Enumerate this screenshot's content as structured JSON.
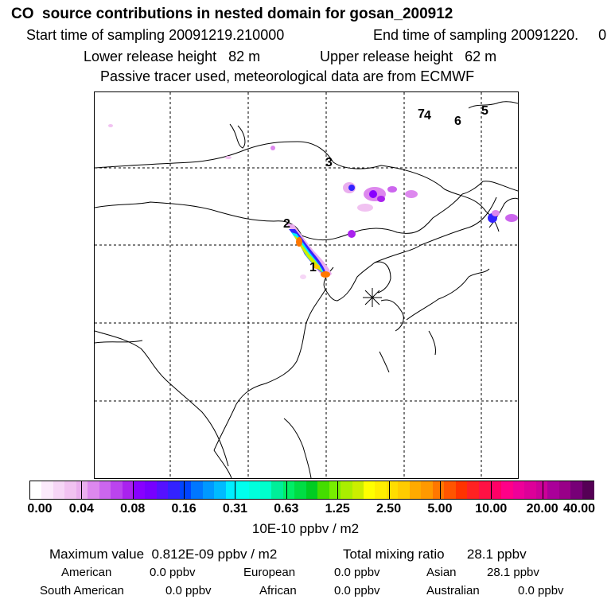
{
  "header": {
    "title": "CO  source contributions in nested domain for gosan_200912",
    "start_label": "Start time of sampling 20091219.210000",
    "end_label": "End time of sampling 20091220.     0",
    "lower_height": "Lower release height   82 m",
    "upper_height": "Upper release height   62 m",
    "tracer_note": "Passive tracer used, meteorological data are from ECMWF"
  },
  "map": {
    "point_labels": [
      "1",
      "2",
      "3",
      "4",
      "5",
      "6",
      "7"
    ],
    "receptor_symbol": "star-marker"
  },
  "colorbar": {
    "ticks": [
      "0.00",
      "0.04",
      "0.08",
      "0.16",
      "0.31",
      "0.63",
      "1.25",
      "2.50",
      "5.00",
      "10.00",
      "20.00",
      "40.00"
    ],
    "unit": "10E-10 ppbv / m2",
    "colors": [
      "#ffffff",
      "#fbeafb",
      "#f6d6f6",
      "#f1c2f1",
      "#eaaeee",
      "#dd88ee",
      "#cc66ee",
      "#bb44ee",
      "#aa22ee",
      "#8800ff",
      "#7700ff",
      "#5511ff",
      "#3322ff",
      "#0044ff",
      "#0077ff",
      "#0099ff",
      "#00bbff",
      "#00eeff",
      "#00ffee",
      "#00ffdd",
      "#00ffcc",
      "#00ee99",
      "#00ee66",
      "#00dd44",
      "#00cc22",
      "#44dd00",
      "#77ee00",
      "#aaee00",
      "#ccee00",
      "#ffff00",
      "#ffee00",
      "#ffdd00",
      "#ffcc00",
      "#ffaa00",
      "#ff9900",
      "#ff7700",
      "#ff5500",
      "#ff3300",
      "#ff2222",
      "#ff1144",
      "#ff0066",
      "#ff0088",
      "#ee0099",
      "#dd0099",
      "#cc0099",
      "#aa0099",
      "#990088",
      "#770077",
      "#550055"
    ]
  },
  "summary": {
    "max_value": "Maximum value  0.812E-09 ppbv / m2",
    "total_mixing": "Total mixing ratio      28.1 ppbv",
    "regions": [
      {
        "name": "American",
        "value": "0.0 ppbv"
      },
      {
        "name": "European",
        "value": "0.0 ppbv"
      },
      {
        "name": "Asian",
        "value": "28.1 ppbv"
      },
      {
        "name": "South American",
        "value": "0.0 ppbv"
      },
      {
        "name": "African",
        "value": "0.0 ppbv"
      },
      {
        "name": "Australian",
        "value": "0.0 ppbv"
      }
    ]
  },
  "chart_data": {
    "type": "heatmap",
    "title": "CO  source contributions in nested domain for gosan_200912",
    "colorbar_unit": "10E-10 ppbv / m2",
    "colorbar_ticks": [
      0.0,
      0.04,
      0.08,
      0.16,
      0.31,
      0.63,
      1.25,
      2.5,
      5.0,
      10.0,
      20.0,
      40.0
    ],
    "grid": true,
    "maximum_value_ppbv_per_m2": 8.12e-10,
    "total_mixing_ratio_ppbv": 28.1
  }
}
